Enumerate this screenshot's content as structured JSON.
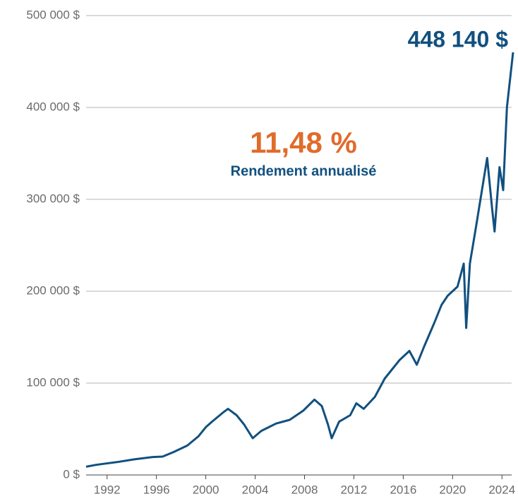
{
  "chart_data": {
    "type": "line",
    "annotations": [
      "448 140 $",
      "11,48 %",
      "Rendement annualisé"
    ],
    "x": [
      1990.3,
      1991.1,
      1991.9,
      1992.8,
      1994.2,
      1995.7,
      1996.5,
      1997.4,
      1998.5,
      1999.4,
      2000.0,
      2000.5,
      2001.4,
      2001.8,
      2002.5,
      2003.1,
      2003.8,
      2004.5,
      2005.7,
      2006.8,
      2007.9,
      2008.8,
      2009.4,
      2009.9,
      2010.2,
      2010.8,
      2011.7,
      2012.2,
      2012.8,
      2013.7,
      2014.5,
      2015.7,
      2016.5,
      2017.1,
      2017.7,
      2018.5,
      2019.1,
      2019.6,
      2020.4,
      2020.9,
      2021.1,
      2021.4,
      2021.9,
      2022.8,
      2023.2,
      2023.4,
      2023.8,
      2024.1,
      2024.4,
      2024.9
    ],
    "series": [
      {
        "color": "#11507f",
        "values": [
          9000,
          11000,
          12500,
          14000,
          17000,
          19500,
          20000,
          25000,
          32000,
          42000,
          52000,
          58000,
          68000,
          72000,
          65000,
          55000,
          40000,
          48000,
          56000,
          60000,
          70000,
          82000,
          75000,
          55000,
          40000,
          58000,
          65000,
          78000,
          72000,
          85000,
          105000,
          125000,
          135000,
          120000,
          140000,
          165000,
          185000,
          195000,
          205000,
          230000,
          160000,
          230000,
          270000,
          345000,
          290000,
          265000,
          335000,
          310000,
          400000,
          460000
        ]
      }
    ],
    "xlim": [
      1990.3,
      2024.9
    ],
    "xticks": [
      1992,
      1996,
      2000,
      2004,
      2008,
      2012,
      2016,
      2020,
      2024
    ],
    "ylim": [
      0,
      500000
    ],
    "yticks": [
      {
        "value": 0,
        "label": "0 $"
      },
      {
        "value": 100000,
        "label": "100 000 $"
      },
      {
        "value": 200000,
        "label": "200 000 $"
      },
      {
        "value": 300000,
        "label": "300 000 $"
      },
      {
        "value": 400000,
        "label": "400 000 $"
      },
      {
        "value": 500000,
        "label": "500 000 $"
      }
    ],
    "grid": true,
    "annotation_colors": [
      "#11507f",
      "#e06c2b",
      "#11507f"
    ]
  }
}
